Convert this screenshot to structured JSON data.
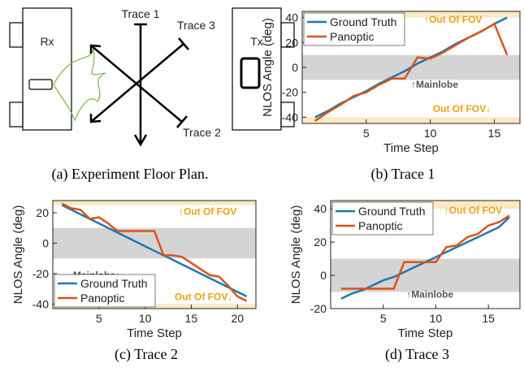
{
  "diagram": {
    "rx": "Rx",
    "tx": "Tx",
    "trace1": "Trace 1",
    "trace2": "Trace 2",
    "trace3": "Trace 3",
    "caption": "(a) Experiment Floor Plan."
  },
  "chart_data": [
    {
      "type": "line",
      "caption": "(b) Trace 1",
      "xlabel": "Time Step",
      "ylabel": "NLOS Angle (deg)",
      "x": [
        1,
        2,
        3,
        4,
        5,
        6,
        7,
        8,
        9,
        10,
        11,
        12,
        13,
        14,
        15,
        16
      ],
      "xlim": [
        0,
        17
      ],
      "xticks": [
        5,
        10,
        15
      ],
      "ylim": [
        -45,
        45
      ],
      "yticks": [
        -40,
        -20,
        0,
        20,
        40
      ],
      "bands": [
        {
          "range": [
            40,
            45
          ],
          "color": "#fbe9c4"
        },
        {
          "range": [
            -10,
            10
          ],
          "color": "#d4d4d4"
        },
        {
          "range": [
            -45,
            -40
          ],
          "color": "#fbe9c4"
        }
      ],
      "annotations": [
        "↑Out Of FOV",
        "↑Mainlobe",
        "Out Of FOV↓"
      ],
      "legend": "upper-left",
      "series": [
        {
          "name": "Ground Truth",
          "color": "#1f77b4",
          "values": [
            -40,
            -35,
            -29,
            -24,
            -19,
            -13,
            -8,
            -3,
            3,
            8,
            13,
            19,
            24,
            29,
            35,
            40
          ]
        },
        {
          "name": "Panoptic",
          "color": "#d95319",
          "values": [
            -43,
            -36,
            -30,
            -23,
            -20,
            -14,
            -9,
            -9,
            8,
            7,
            12,
            18,
            24,
            29,
            35,
            10
          ]
        }
      ]
    },
    {
      "type": "line",
      "caption": "(c) Trace 2",
      "xlabel": "Time Step",
      "ylabel": "NLOS Angle (deg)",
      "x": [
        1,
        2,
        3,
        4,
        5,
        6,
        7,
        8,
        9,
        10,
        11,
        12,
        13,
        14,
        15,
        16,
        17,
        18,
        19,
        20,
        21
      ],
      "xlim": [
        0,
        22
      ],
      "xticks": [
        5,
        10,
        15,
        20
      ],
      "ylim": [
        -43,
        28
      ],
      "yticks": [
        -40,
        -20,
        0,
        20
      ],
      "bands": [
        {
          "range": [
            25,
            28
          ],
          "color": "#fbe9c4"
        },
        {
          "range": [
            -10,
            10
          ],
          "color": "#d4d4d4"
        },
        {
          "range": [
            -43,
            -40
          ],
          "color": "#fbe9c4"
        }
      ],
      "annotations": [
        "↑Out Of FOV",
        "Mainlobe↑",
        "Out Of FOV↓"
      ],
      "legend": "lower-left",
      "series": [
        {
          "name": "Ground Truth",
          "color": "#1f77b4",
          "values": [
            25,
            22,
            19,
            16,
            13,
            10,
            7,
            4,
            1,
            -2,
            -5,
            -8,
            -11,
            -14,
            -17,
            -20,
            -23,
            -26,
            -29,
            -32,
            -35
          ]
        },
        {
          "name": "Panoptic",
          "color": "#d95319",
          "values": [
            26,
            23,
            22,
            16,
            17,
            13,
            8,
            8,
            8,
            8,
            8,
            -8,
            -8,
            -9,
            -13,
            -17,
            -21,
            -22,
            -28,
            -35,
            -38
          ]
        }
      ]
    },
    {
      "type": "line",
      "caption": "(d) Trace 3",
      "xlabel": "Time Step",
      "ylabel": "NLOS Angle (deg)",
      "x": [
        1,
        2,
        3,
        4,
        5,
        6,
        7,
        8,
        9,
        10,
        11,
        12,
        13,
        14,
        15,
        16,
        17
      ],
      "xlim": [
        0,
        18
      ],
      "xticks": [
        5,
        10,
        15
      ],
      "ylim": [
        -20,
        45
      ],
      "yticks": [
        -20,
        0,
        20,
        40
      ],
      "bands": [
        {
          "range": [
            40,
            45
          ],
          "color": "#fbe9c4"
        },
        {
          "range": [
            -10,
            10
          ],
          "color": "#d4d4d4"
        }
      ],
      "annotations": [
        "↑Out Of FOV",
        "↑Mainlobe"
      ],
      "legend": "upper-left",
      "series": [
        {
          "name": "Ground Truth",
          "color": "#1f77b4",
          "values": [
            -14,
            -11,
            -9,
            -6,
            -3,
            -1,
            2,
            5,
            8,
            11,
            14,
            17,
            20,
            23,
            26,
            29,
            35
          ]
        },
        {
          "name": "Panoptic",
          "color": "#d95319",
          "values": [
            -8,
            -8,
            -8,
            -8,
            -8,
            -8,
            8,
            8,
            8,
            8,
            17,
            18,
            23,
            25,
            30,
            32,
            36
          ]
        }
      ]
    }
  ]
}
